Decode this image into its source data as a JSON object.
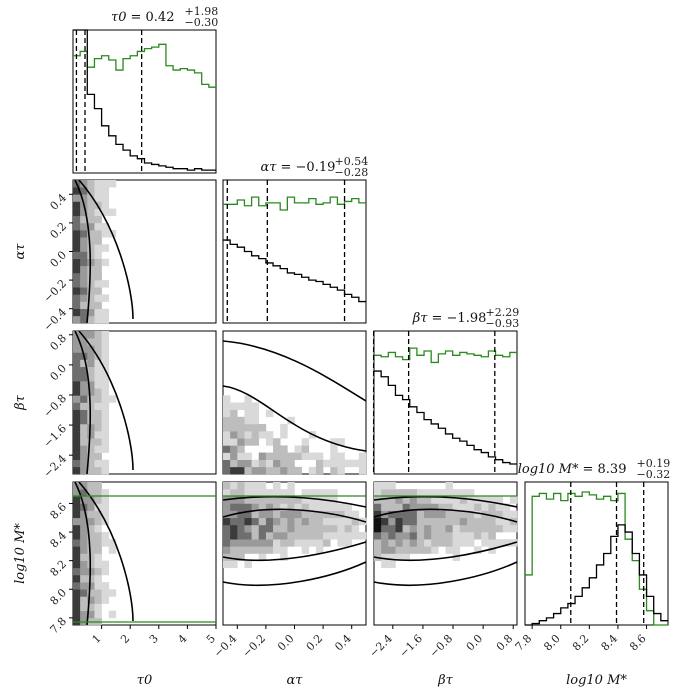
{
  "chart_data": {
    "type": "corner",
    "parameters": [
      "tau0",
      "alpha_tau",
      "beta_tau",
      "log10_M"
    ],
    "axis_labels": [
      "τ0",
      "ατ",
      "βτ",
      "log10 M*"
    ],
    "titles": [
      {
        "name": "τ0",
        "median": "0.42",
        "plus": "+1.98",
        "minus": "−0.30"
      },
      {
        "name": "ατ",
        "median": "−0.19",
        "plus": "+0.54",
        "minus": "−0.28"
      },
      {
        "name": "βτ",
        "median": "−1.98",
        "plus": "+2.29",
        "minus": "−0.93"
      },
      {
        "name": "log10 M*",
        "median": "8.39",
        "plus": "+0.19",
        "minus": "−0.32"
      }
    ],
    "ranges": [
      [
        0,
        5
      ],
      [
        -0.5,
        0.5
      ],
      [
        -2.9,
        0.9
      ],
      [
        7.75,
        8.75
      ]
    ],
    "ticks": [
      [
        "1",
        "2",
        "3",
        "4",
        "5"
      ],
      [
        "−0.4",
        "−0.2",
        "0.0",
        "0.2",
        "0.4"
      ],
      [
        "−2.4",
        "−1.6",
        "−0.8",
        "0.0",
        "0.8"
      ],
      [
        "7.8",
        "8.0",
        "8.2",
        "8.4",
        "8.6"
      ]
    ],
    "tick_values": [
      [
        1,
        2,
        3,
        4,
        5
      ],
      [
        -0.4,
        -0.2,
        0.0,
        0.2,
        0.4
      ],
      [
        -2.4,
        -1.6,
        -0.8,
        0.0,
        0.8
      ],
      [
        7.8,
        8.0,
        8.2,
        8.4,
        8.6
      ]
    ],
    "quantiles": [
      [
        0.12,
        0.42,
        2.4
      ],
      [
        -0.47,
        -0.19,
        0.35
      ],
      [
        -2.91,
        -1.98,
        0.31
      ],
      [
        8.07,
        8.39,
        8.58
      ]
    ],
    "hist_posterior": [
      [
        1.0,
        1.0,
        0.55,
        0.45,
        0.33,
        0.26,
        0.2,
        0.16,
        0.12,
        0.1,
        0.07,
        0.06,
        0.05,
        0.04,
        0.03,
        0.03,
        0.02,
        0.03,
        0.02,
        0.02
      ],
      [
        0.58,
        0.55,
        0.53,
        0.5,
        0.47,
        0.45,
        0.42,
        0.4,
        0.38,
        0.35,
        0.34,
        0.32,
        0.3,
        0.29,
        0.27,
        0.25,
        0.23,
        0.2,
        0.18,
        0.15
      ],
      [
        0.72,
        0.68,
        0.62,
        0.55,
        0.52,
        0.47,
        0.43,
        0.38,
        0.35,
        0.32,
        0.28,
        0.25,
        0.23,
        0.2,
        0.17,
        0.15,
        0.12,
        0.1,
        0.08,
        0.07
      ],
      [
        0.0,
        0.01,
        0.03,
        0.05,
        0.08,
        0.12,
        0.15,
        0.2,
        0.26,
        0.33,
        0.42,
        0.5,
        0.62,
        0.7,
        0.65,
        0.5,
        0.35,
        0.2,
        0.08,
        0.03
      ]
    ],
    "hist_prior": [
      [
        0.82,
        0.85,
        0.74,
        0.8,
        0.82,
        0.79,
        0.72,
        0.8,
        0.82,
        0.85,
        0.87,
        0.88,
        0.9,
        0.75,
        0.72,
        0.73,
        0.72,
        0.7,
        0.62,
        0.6
      ],
      [
        0.83,
        0.83,
        0.86,
        0.82,
        0.88,
        0.82,
        0.84,
        0.84,
        0.79,
        0.88,
        0.84,
        0.84,
        0.87,
        0.83,
        0.84,
        0.88,
        0.83,
        0.85,
        0.87,
        0.84
      ],
      [
        0.83,
        0.82,
        0.85,
        0.82,
        0.8,
        0.88,
        0.83,
        0.86,
        0.78,
        0.84,
        0.86,
        0.83,
        0.85,
        0.84,
        0.83,
        0.82,
        0.86,
        0.83,
        0.82,
        0.85
      ],
      [
        0.35,
        0.9,
        0.92,
        0.88,
        0.92,
        0.87,
        0.92,
        0.9,
        0.93,
        0.91,
        0.88,
        0.9,
        0.87,
        0.92,
        0.6,
        0.45,
        0.25,
        0.1,
        0.0,
        0.0
      ]
    ],
    "legend": "none",
    "grid": false
  }
}
